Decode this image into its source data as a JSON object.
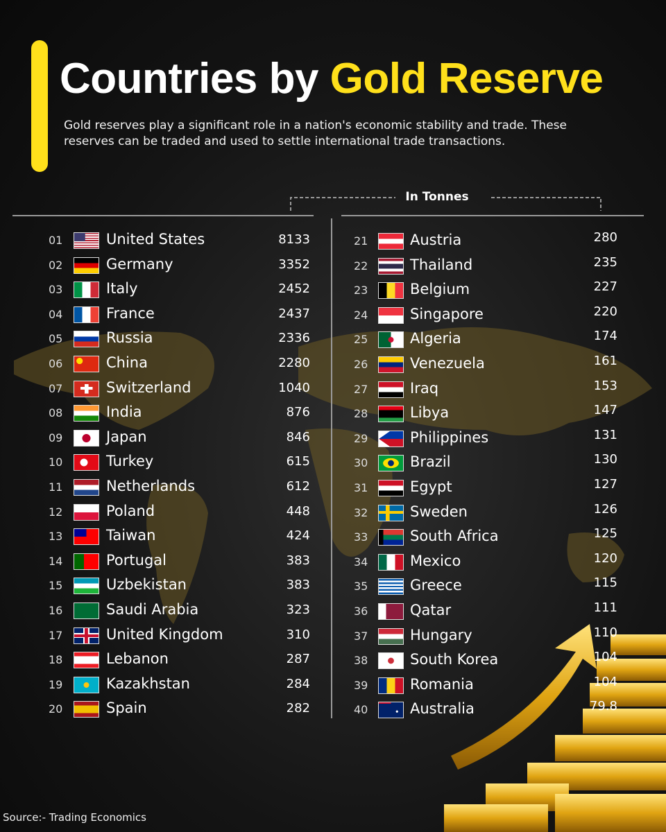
{
  "header": {
    "title_lead": "Countries by",
    "title_highlight": "Gold Reserve",
    "subtitle": "Gold reserves play a significant role in a nation's economic stability and trade. These reserves can be traded and used to settle international trade transactions."
  },
  "unit_label": "In Tonnes",
  "table": {
    "rows": [
      {
        "rank": "01",
        "country": "United States",
        "tonnes": 8133
      },
      {
        "rank": "02",
        "country": "Germany",
        "tonnes": 3352
      },
      {
        "rank": "03",
        "country": "Italy",
        "tonnes": 2452
      },
      {
        "rank": "04",
        "country": "France",
        "tonnes": 2437
      },
      {
        "rank": "05",
        "country": "Russia",
        "tonnes": 2336
      },
      {
        "rank": "06",
        "country": "China",
        "tonnes": 2280
      },
      {
        "rank": "07",
        "country": "Switzerland",
        "tonnes": 1040
      },
      {
        "rank": "08",
        "country": "India",
        "tonnes": 876
      },
      {
        "rank": "09",
        "country": "Japan",
        "tonnes": 846
      },
      {
        "rank": "10",
        "country": "Turkey",
        "tonnes": 615
      },
      {
        "rank": "11",
        "country": "Netherlands",
        "tonnes": 612
      },
      {
        "rank": "12",
        "country": "Poland",
        "tonnes": 448
      },
      {
        "rank": "13",
        "country": "Taiwan",
        "tonnes": 424
      },
      {
        "rank": "14",
        "country": "Portugal",
        "tonnes": 383
      },
      {
        "rank": "15",
        "country": "Uzbekistan",
        "tonnes": 383
      },
      {
        "rank": "16",
        "country": "Saudi Arabia",
        "tonnes": 323
      },
      {
        "rank": "17",
        "country": "United Kingdom",
        "tonnes": 310
      },
      {
        "rank": "18",
        "country": "Lebanon",
        "tonnes": 287
      },
      {
        "rank": "19",
        "country": "Kazakhstan",
        "tonnes": 284
      },
      {
        "rank": "20",
        "country": "Spain",
        "tonnes": 282
      },
      {
        "rank": "21",
        "country": "Austria",
        "tonnes": 280
      },
      {
        "rank": "22",
        "country": "Thailand",
        "tonnes": 235
      },
      {
        "rank": "23",
        "country": "Belgium",
        "tonnes": 227
      },
      {
        "rank": "24",
        "country": "Singapore",
        "tonnes": 220
      },
      {
        "rank": "25",
        "country": "Algeria",
        "tonnes": 174
      },
      {
        "rank": "26",
        "country": "Venezuela",
        "tonnes": 161
      },
      {
        "rank": "27",
        "country": "Iraq",
        "tonnes": 153
      },
      {
        "rank": "28",
        "country": "Libya",
        "tonnes": 147
      },
      {
        "rank": "29",
        "country": "Philippines",
        "tonnes": 131
      },
      {
        "rank": "30",
        "country": "Brazil",
        "tonnes": 130
      },
      {
        "rank": "31",
        "country": "Egypt",
        "tonnes": 127
      },
      {
        "rank": "32",
        "country": "Sweden",
        "tonnes": 126
      },
      {
        "rank": "33",
        "country": "South Africa",
        "tonnes": 125
      },
      {
        "rank": "34",
        "country": "Mexico",
        "tonnes": 120
      },
      {
        "rank": "35",
        "country": "Greece",
        "tonnes": 115
      },
      {
        "rank": "36",
        "country": "Qatar",
        "tonnes": 111
      },
      {
        "rank": "37",
        "country": "Hungary",
        "tonnes": 110
      },
      {
        "rank": "38",
        "country": "South Korea",
        "tonnes": 104
      },
      {
        "rank": "39",
        "country": "Romania",
        "tonnes": 104
      },
      {
        "rank": "40",
        "country": "Australia",
        "tonnes": 79.8
      }
    ]
  },
  "source": "Source:- Trading Economics"
}
